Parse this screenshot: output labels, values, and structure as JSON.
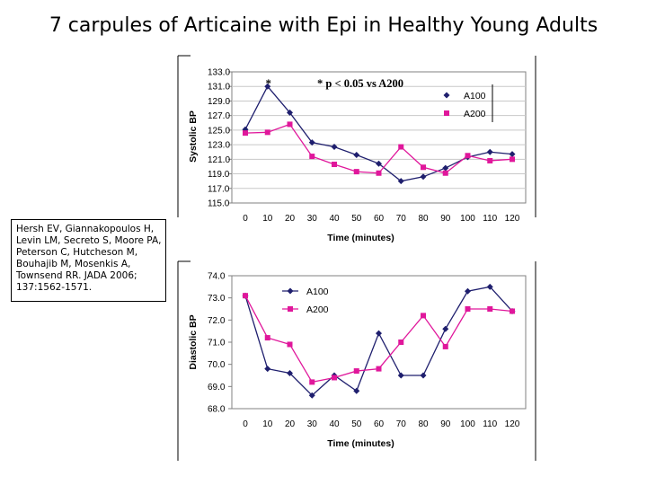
{
  "page": {
    "title": "7 carpules of Articaine with Epi in Healthy Young Adults",
    "citation": "Hersh EV, Giannakopoulos H, Levin LM, Secreto S, Moore PA, Peterson C, Hutcheson M, Bouhajib M, Mosenkis A, Townsend RR. JADA 2006; 137:1562-1571."
  },
  "chart_data": [
    {
      "type": "line",
      "ylabel": "Systolic BP",
      "xlabel": "Time (minutes)",
      "x": [
        0,
        10,
        20,
        30,
        40,
        50,
        60,
        70,
        80,
        90,
        100,
        110,
        120
      ],
      "ylim": [
        115.0,
        133.0
      ],
      "yticks": [
        "115.0",
        "117.0",
        "119.0",
        "121.0",
        "123.0",
        "125.0",
        "127.0",
        "129.0",
        "131.0",
        "133.0"
      ],
      "grid": true,
      "legend_position": "top-right",
      "annotations": [
        {
          "text": "*",
          "x": 10
        },
        {
          "text": "* p < 0.05 vs A200"
        }
      ],
      "series": [
        {
          "name": "A100",
          "color": "#1f1f6e",
          "marker": "diamond",
          "values": [
            125.1,
            131.0,
            127.4,
            123.3,
            122.7,
            121.6,
            120.4,
            118.0,
            118.6,
            119.8,
            121.3,
            122.0,
            121.7
          ]
        },
        {
          "name": "A200",
          "color": "#e0179b",
          "marker": "square",
          "values": [
            124.6,
            124.7,
            125.8,
            121.4,
            120.3,
            119.3,
            119.1,
            122.7,
            119.9,
            119.1,
            121.5,
            120.8,
            121.0
          ]
        }
      ]
    },
    {
      "type": "line",
      "ylabel": "Diastolic BP",
      "xlabel": "Time (minutes)",
      "x": [
        0,
        10,
        20,
        30,
        40,
        50,
        60,
        70,
        80,
        90,
        100,
        110,
        120
      ],
      "ylim": [
        68.0,
        74.0
      ],
      "yticks": [
        "68.0",
        "69.0",
        "70.0",
        "71.0",
        "72.0",
        "73.0",
        "74.0"
      ],
      "grid": false,
      "legend_position": "top-left",
      "series": [
        {
          "name": "A100",
          "color": "#1f1f6e",
          "marker": "diamond",
          "values": [
            73.1,
            69.8,
            69.6,
            68.6,
            69.5,
            68.8,
            71.4,
            69.5,
            69.5,
            71.6,
            73.3,
            73.5,
            72.4
          ]
        },
        {
          "name": "A200",
          "color": "#e0179b",
          "marker": "square",
          "values": [
            73.1,
            71.2,
            70.9,
            69.2,
            69.4,
            69.7,
            69.8,
            71.0,
            72.2,
            70.8,
            72.5,
            72.5,
            72.4
          ]
        }
      ]
    }
  ]
}
